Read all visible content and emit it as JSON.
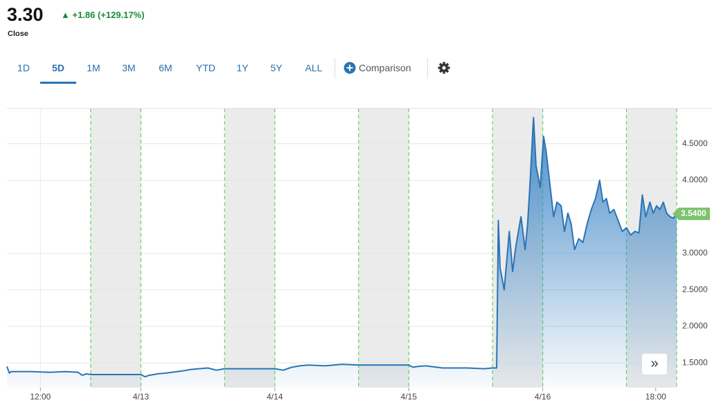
{
  "quote": {
    "price": "3.30",
    "change": "+1.86 (+129.17%)",
    "status": "Close"
  },
  "tabs": [
    "1D",
    "5D",
    "1M",
    "3M",
    "6M",
    "YTD",
    "1Y",
    "5Y",
    "ALL"
  ],
  "selected_tab": 1,
  "comparison": "Comparison",
  "chart_data": {
    "type": "area",
    "series": [
      {
        "color": "#2a74b5",
        "x": [
          0,
          0.3,
          0.5,
          3,
          5,
          7,
          8.5,
          9,
          9.5,
          10,
          13,
          16,
          16.5,
          17,
          18,
          19,
          21,
          22,
          24,
          25,
          26,
          29,
          32,
          33,
          34,
          35,
          36,
          38,
          40,
          42,
          45,
          48,
          48.5,
          49,
          50,
          52,
          55,
          57,
          58,
          58.5,
          58.7,
          58.9,
          59.4,
          60,
          60.4,
          60.8,
          61.4,
          61.9,
          62.2,
          62.5,
          62.9,
          63.2,
          63.7,
          64.1,
          64.4,
          64.8,
          65.3,
          65.7,
          66.2,
          66.6,
          67,
          67.4,
          67.8,
          68.3,
          68.8,
          69.3,
          69.8,
          70.3,
          70.8,
          71.2,
          71.6,
          72,
          72.5,
          73,
          73.5,
          74,
          74.5,
          75,
          75.5,
          75.9,
          76.3,
          76.8,
          77.2,
          77.6,
          78,
          78.4,
          78.8,
          79.2,
          79.6,
          80
        ],
        "values": [
          1.45,
          1.36,
          1.38,
          1.38,
          1.37,
          1.38,
          1.37,
          1.33,
          1.35,
          1.34,
          1.34,
          1.34,
          1.31,
          1.33,
          1.35,
          1.36,
          1.39,
          1.41,
          1.43,
          1.4,
          1.42,
          1.42,
          1.42,
          1.4,
          1.44,
          1.46,
          1.47,
          1.46,
          1.48,
          1.47,
          1.47,
          1.47,
          1.44,
          1.45,
          1.46,
          1.43,
          1.43,
          1.42,
          1.43,
          1.43,
          3.45,
          2.8,
          2.5,
          3.3,
          2.75,
          3.1,
          3.5,
          3.05,
          3.4,
          4.0,
          4.86,
          4.2,
          3.9,
          4.6,
          4.4,
          4.0,
          3.5,
          3.7,
          3.65,
          3.3,
          3.55,
          3.4,
          3.05,
          3.2,
          3.15,
          3.4,
          3.6,
          3.75,
          4.0,
          3.7,
          3.75,
          3.55,
          3.6,
          3.45,
          3.3,
          3.35,
          3.25,
          3.3,
          3.28,
          3.8,
          3.5,
          3.7,
          3.55,
          3.65,
          3.6,
          3.7,
          3.55,
          3.5,
          3.48,
          3.54
        ]
      }
    ],
    "xlim": [
      0,
      80
    ],
    "xticks": [
      {
        "value": 4,
        "label": "12:00"
      },
      {
        "value": 16,
        "label": "4/13"
      },
      {
        "value": 32,
        "label": "4/14"
      },
      {
        "value": 48,
        "label": "4/15"
      },
      {
        "value": 64,
        "label": "4/16"
      },
      {
        "value": 77.5,
        "label": "18:00"
      }
    ],
    "ylim": [
      1.16,
      4.98
    ],
    "yticks": [
      {
        "value": 1.5,
        "label": "1.5000"
      },
      {
        "value": 2,
        "label": "2.0000"
      },
      {
        "value": 2.5,
        "label": "2.5000"
      },
      {
        "value": 3,
        "label": "3.0000"
      },
      {
        "value": 4,
        "label": "4.0000"
      },
      {
        "value": 4.5,
        "label": "4.5000"
      }
    ],
    "grid": true,
    "shaded_ranges": [
      [
        10,
        16
      ],
      [
        26,
        32
      ],
      [
        42,
        48
      ],
      [
        58,
        64
      ],
      [
        74,
        80
      ]
    ],
    "last_price": {
      "value": 3.54,
      "label": "3.5400"
    }
  }
}
